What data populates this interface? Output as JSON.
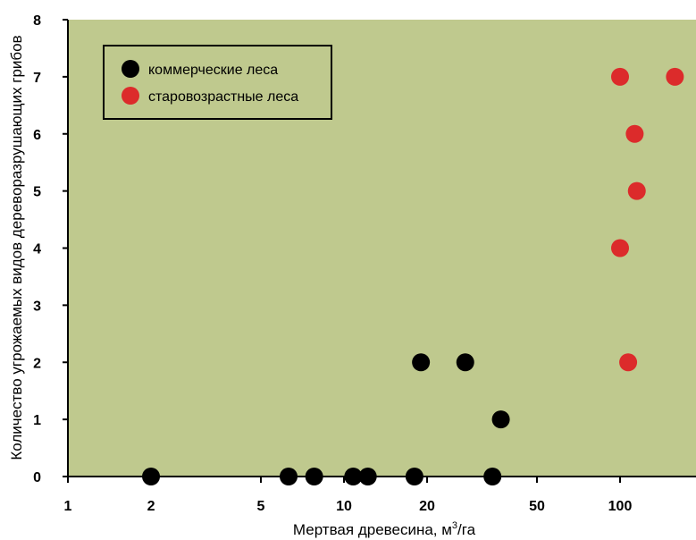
{
  "chart_data": {
    "type": "scatter",
    "title": "",
    "xlabel": "Мертвая древесина, м",
    "xlabel_sup": "3",
    "xlabel_suffix": "/га",
    "ylabel": "Количество угрожаемых видов дереворазрушающих грибов",
    "x_scale": "log",
    "xlim": [
      1,
      160
    ],
    "ylim": [
      0,
      8
    ],
    "x_ticks": [
      1,
      2,
      5,
      10,
      20,
      50,
      100
    ],
    "x_tick_labels": [
      "1",
      "2",
      "5",
      "10",
      "20",
      "50",
      "100"
    ],
    "y_ticks": [
      0,
      1,
      2,
      3,
      4,
      5,
      6,
      7,
      8
    ],
    "y_tick_labels": [
      "0",
      "1",
      "2",
      "3",
      "4",
      "5",
      "6",
      "7",
      "8"
    ],
    "grid": false,
    "legend_position": "top-left",
    "background_color": "#bfc98e",
    "series": [
      {
        "name": "коммерческие леса",
        "color": "#000000",
        "points": [
          {
            "x": 2.0,
            "y": 0
          },
          {
            "x": 6.3,
            "y": 0
          },
          {
            "x": 7.8,
            "y": 0
          },
          {
            "x": 10.8,
            "y": 0
          },
          {
            "x": 12.2,
            "y": 0
          },
          {
            "x": 18.0,
            "y": 0
          },
          {
            "x": 34.5,
            "y": 0
          },
          {
            "x": 19.0,
            "y": 2
          },
          {
            "x": 27.5,
            "y": 2
          },
          {
            "x": 37.0,
            "y": 1
          }
        ]
      },
      {
        "name": "старовозрастные леса",
        "color": "#dc2b2b",
        "points": [
          {
            "x": 100,
            "y": 7
          },
          {
            "x": 158,
            "y": 7
          },
          {
            "x": 113,
            "y": 6
          },
          {
            "x": 115,
            "y": 5
          },
          {
            "x": 100,
            "y": 4
          },
          {
            "x": 107,
            "y": 2
          }
        ]
      }
    ]
  }
}
